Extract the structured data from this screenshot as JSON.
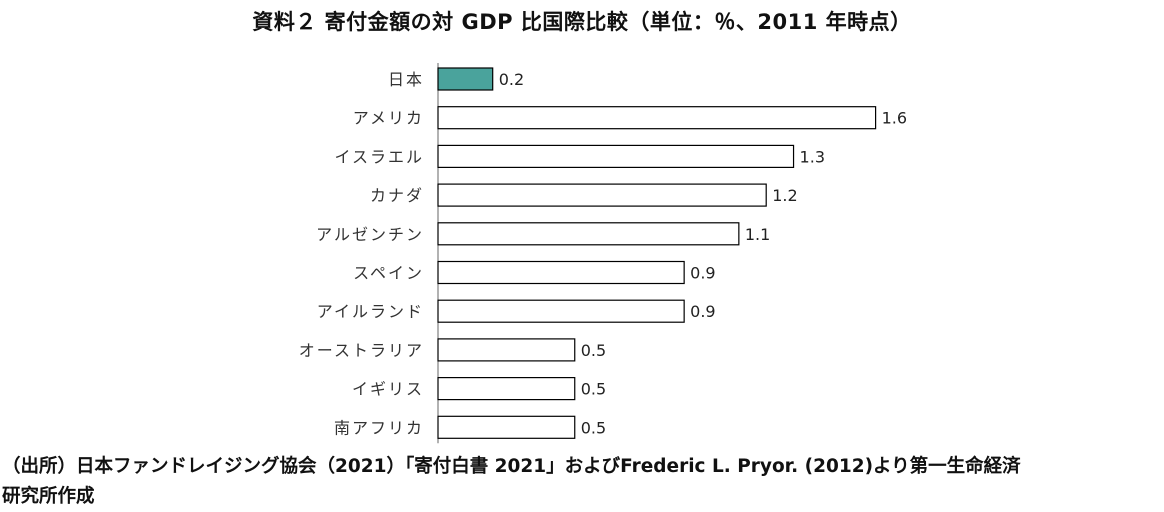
{
  "chart_data": {
    "type": "bar",
    "orientation": "horizontal",
    "title": "資料２ 寄付金額の対 GDP 比国際比較（単位：％、2011 年時点）",
    "categories": [
      "日本",
      "アメリカ",
      "イスラエル",
      "カナダ",
      "アルゼンチン",
      "スペイン",
      "アイルランド",
      "オーストラリア",
      "イギリス",
      "南アフリカ"
    ],
    "values": [
      0.2,
      1.6,
      1.3,
      1.2,
      1.1,
      0.9,
      0.9,
      0.5,
      0.5,
      0.5
    ],
    "value_labels": [
      "0.2",
      "1.6",
      "1.3",
      "1.2",
      "1.1",
      "0.9",
      "0.9",
      "0.5",
      "0.5",
      "0.5"
    ],
    "xlabel": "",
    "ylabel": "",
    "xlim": [
      0,
      1.6
    ],
    "grid": false,
    "legend": "none",
    "highlight_category": "日本",
    "colors": {
      "highlight": "#4aa39c",
      "default_fill": "#ffffff",
      "stroke": "#000000"
    }
  },
  "source_note": {
    "line1": "（出所）日本ファンドレイジング協会（2021）「寄付白書 2021」およびFrederic L. Pryor. (2012)より第一生命経済",
    "line2": "研究所作成"
  }
}
